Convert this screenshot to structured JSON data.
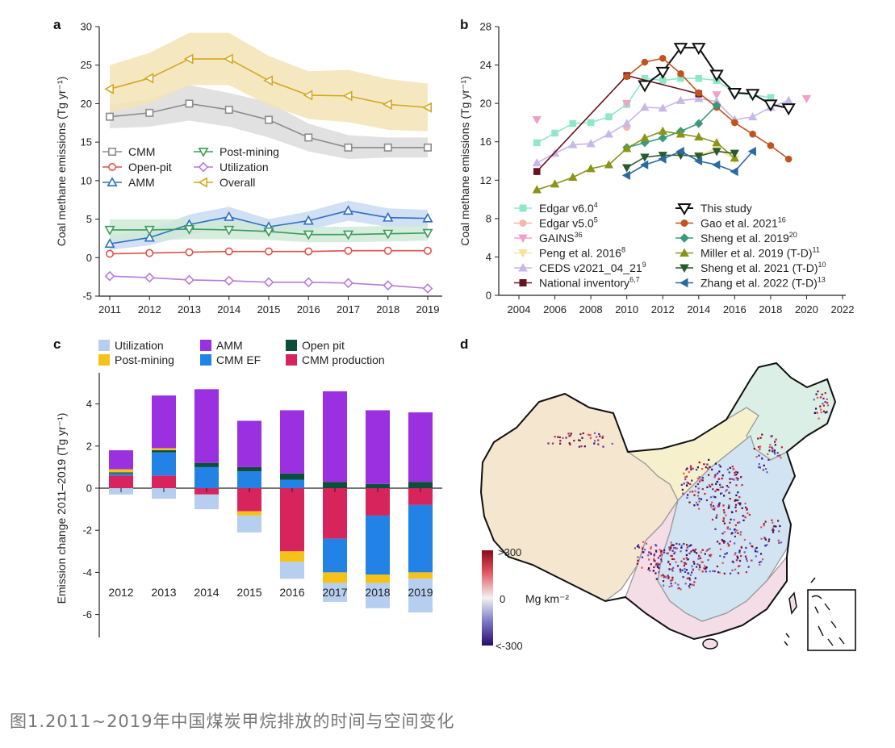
{
  "caption": "图1.2011~2019年中国煤炭甲烷排放的时间与空间变化",
  "chart_data": [
    {
      "panel": "a",
      "type": "line",
      "ylabel": "Coal methane emissions (Tg yr⁻¹)",
      "ylim": [
        -5,
        30
      ],
      "yticks": [
        -5,
        0,
        5,
        10,
        15,
        20,
        25,
        30
      ],
      "x": [
        2011,
        2012,
        2013,
        2014,
        2015,
        2016,
        2017,
        2018,
        2019
      ],
      "series": [
        {
          "name": "CMM",
          "color": "#8c8c8c",
          "band": "#dcdcdc",
          "marker": "square",
          "values": [
            18.3,
            18.8,
            20.0,
            19.2,
            17.9,
            15.6,
            14.3,
            14.3,
            14.3
          ],
          "lo": [
            16.8,
            17.0,
            17.8,
            17.0,
            15.6,
            13.8,
            12.8,
            13.0,
            13.0
          ],
          "hi": [
            19.8,
            20.6,
            22.4,
            21.4,
            20.2,
            17.4,
            15.9,
            15.6,
            15.6
          ]
        },
        {
          "name": "Open-pit",
          "color": "#e0504a",
          "marker": "circle",
          "values": [
            0.5,
            0.6,
            0.7,
            0.8,
            0.8,
            0.8,
            0.9,
            0.9,
            0.9
          ]
        },
        {
          "name": "AMM",
          "color": "#2d6ec4",
          "band": "#c9daf2",
          "marker": "triangle-up",
          "values": [
            1.8,
            2.6,
            4.3,
            5.3,
            4.0,
            4.8,
            6.1,
            5.2,
            5.1
          ],
          "lo": [
            1.0,
            1.6,
            3.0,
            4.0,
            3.0,
            3.6,
            4.8,
            4.0,
            4.0
          ],
          "hi": [
            2.8,
            3.6,
            5.6,
            6.6,
            5.0,
            6.0,
            7.4,
            6.4,
            6.2
          ]
        },
        {
          "name": "Post-mining",
          "color": "#3a9c5a",
          "band": "#cfe9d6",
          "marker": "triangle-down",
          "values": [
            3.6,
            3.6,
            3.7,
            3.6,
            3.4,
            3.0,
            3.0,
            3.1,
            3.2
          ],
          "lo": [
            2.2,
            2.2,
            2.4,
            2.4,
            2.3,
            2.0,
            2.0,
            2.1,
            2.2
          ],
          "hi": [
            5.0,
            5.0,
            5.0,
            4.8,
            4.5,
            4.0,
            4.0,
            4.1,
            4.2
          ]
        },
        {
          "name": "Utilization",
          "color": "#b67ad8",
          "marker": "diamond",
          "values": [
            -2.4,
            -2.6,
            -2.9,
            -3.0,
            -3.2,
            -3.2,
            -3.3,
            -3.6,
            -4.0
          ]
        },
        {
          "name": "Overall",
          "color": "#d4a820",
          "band": "#f3e4b6",
          "marker": "triangle-left",
          "values": [
            21.9,
            23.3,
            25.8,
            25.8,
            23.0,
            21.1,
            21.0,
            19.9,
            19.5
          ],
          "lo": [
            18.8,
            20.0,
            22.4,
            22.4,
            19.8,
            18.0,
            17.6,
            16.6,
            16.4
          ],
          "hi": [
            25.0,
            26.6,
            29.2,
            29.2,
            26.2,
            24.2,
            24.4,
            23.2,
            22.6
          ]
        }
      ]
    },
    {
      "panel": "b",
      "type": "line",
      "ylabel": "Coal methane emissions (Tg yr⁻¹)",
      "xlim": [
        2002,
        2022
      ],
      "xticks": [
        2004,
        2006,
        2008,
        2010,
        2012,
        2014,
        2016,
        2018,
        2020,
        2022
      ],
      "ylim": [
        0,
        28
      ],
      "yticks": [
        0,
        4,
        8,
        12,
        16,
        20,
        24,
        28
      ],
      "series": [
        {
          "name": "Edgar v6.0",
          "sup": "4",
          "color": "#8fe8c8",
          "marker": "square",
          "x": [
            2005,
            2006,
            2007,
            2008,
            2009,
            2010,
            2011,
            2012,
            2013,
            2014,
            2015,
            2016,
            2017,
            2018
          ],
          "values": [
            15.9,
            16.9,
            17.9,
            18.0,
            18.6,
            19.9,
            22.6,
            22.4,
            22.6,
            22.6,
            22.4,
            21.1,
            20.9,
            20.6
          ]
        },
        {
          "name": "Edgar v5.0",
          "sup": "5",
          "color": "#f4b8a8",
          "marker": "circle",
          "x": [
            2010
          ],
          "values": [
            17.5
          ]
        },
        {
          "name": "GAINS",
          "sup": "36",
          "color": "#f2a0c8",
          "marker": "triangle-down",
          "x": [
            2005,
            2010,
            2015,
            2020
          ],
          "values": [
            18.3,
            20.0,
            20.9,
            20.5
          ]
        },
        {
          "name": "Peng et al. 2016",
          "sup": "8",
          "color": "#f6e49a",
          "marker": "triangle-down",
          "x": [
            2014,
            2015,
            2016
          ],
          "values": [
            14.6,
            15.3,
            14.2
          ]
        },
        {
          "name": "CEDS v2021_04_21",
          "sup": "9",
          "color": "#c8b8e8",
          "marker": "triangle-up",
          "x": [
            2005,
            2006,
            2007,
            2008,
            2009,
            2010,
            2011,
            2012,
            2013,
            2014,
            2015,
            2016,
            2017,
            2018,
            2019
          ],
          "values": [
            13.8,
            14.8,
            15.7,
            15.8,
            16.8,
            17.9,
            19.6,
            19.5,
            20.3,
            20.5,
            20.2,
            18.3,
            18.6,
            19.6,
            20.3
          ]
        },
        {
          "name": "National inventory",
          "sup": "6,7",
          "color": "#6b1020",
          "marker": "square",
          "x": [
            2005,
            2010,
            2014
          ],
          "values": [
            12.9,
            22.9,
            21.0
          ]
        },
        {
          "name": "This study",
          "color": "#111111",
          "marker": "triangle-down-open",
          "x": [
            2011,
            2012,
            2013,
            2014,
            2015,
            2016,
            2017,
            2018,
            2019
          ],
          "values": [
            21.9,
            23.3,
            25.8,
            25.8,
            23.0,
            21.1,
            21.0,
            19.9,
            19.5
          ]
        },
        {
          "name": "Gao et al. 2021",
          "sup": "16",
          "color": "#c0541c",
          "marker": "circle",
          "x": [
            2010,
            2011,
            2012,
            2013,
            2014,
            2015,
            2016,
            2017,
            2018,
            2019
          ],
          "values": [
            22.8,
            24.3,
            24.7,
            23.1,
            21.1,
            19.6,
            18.0,
            16.8,
            15.6,
            14.2
          ]
        },
        {
          "name": "Sheng et al. 2019",
          "sup": "20",
          "color": "#3a9a78",
          "marker": "diamond",
          "x": [
            2010,
            2011,
            2012,
            2013,
            2014,
            2015
          ],
          "values": [
            15.4,
            15.9,
            16.4,
            17.1,
            17.9,
            19.8
          ]
        },
        {
          "name": "Miller et al. 2019 (T-D)",
          "sup": "11",
          "color": "#8a9418",
          "marker": "triangle-up",
          "x": [
            2005,
            2006,
            2007,
            2008,
            2009,
            2010,
            2011,
            2012,
            2013,
            2014,
            2015,
            2016
          ],
          "values": [
            11.0,
            11.6,
            12.3,
            13.2,
            13.6,
            15.3,
            16.4,
            17.1,
            16.8,
            16.5,
            15.9,
            14.3
          ]
        },
        {
          "name": "Sheng et al. 2021 (T-D)",
          "sup": "10",
          "color": "#2a5a2a",
          "marker": "triangle-down",
          "x": [
            2010,
            2011,
            2012,
            2013,
            2014,
            2015,
            2016
          ],
          "values": [
            13.3,
            14.4,
            14.6,
            14.6,
            14.5,
            15.0,
            14.8
          ]
        },
        {
          "name": "Zhang et al. 2022 (T-D)",
          "sup": "13",
          "color": "#2a6aa0",
          "marker": "triangle-left",
          "x": [
            2010,
            2011,
            2012,
            2013,
            2014,
            2015,
            2016,
            2017
          ],
          "values": [
            12.5,
            13.6,
            14.2,
            15.0,
            14.0,
            13.6,
            12.9,
            15.0
          ]
        }
      ]
    },
    {
      "panel": "c",
      "type": "bar",
      "ylabel": "Emission change 2011–2019 (Tg yr⁻¹)",
      "ylim": [
        -7,
        5.5
      ],
      "yticks": [
        -6,
        -4,
        -2,
        0,
        2,
        4
      ],
      "categories": [
        "2012",
        "2013",
        "2014",
        "2015",
        "2016",
        "2017",
        "2018",
        "2019"
      ],
      "series": [
        {
          "name": "Utilization",
          "color": "#b6cff0",
          "values": [
            -0.3,
            -0.5,
            -0.7,
            -0.8,
            -0.8,
            -0.9,
            -1.2,
            -1.6
          ]
        },
        {
          "name": "Post-mining",
          "color": "#f6c21a",
          "values": [
            0.15,
            0.1,
            0.0,
            -0.2,
            -0.5,
            -0.5,
            -0.4,
            -0.3
          ]
        },
        {
          "name": "AMM",
          "color": "#9b30e0",
          "values": [
            0.9,
            2.5,
            3.5,
            2.2,
            3.0,
            4.3,
            3.5,
            3.3
          ]
        },
        {
          "name": "CMM EF",
          "color": "#2282e6",
          "values": [
            0.1,
            1.1,
            1.0,
            0.8,
            0.4,
            -1.6,
            -2.8,
            -3.2
          ]
        },
        {
          "name": "Open pit",
          "color": "#0c4e3c",
          "values": [
            0.05,
            0.1,
            0.2,
            0.2,
            0.3,
            0.3,
            0.2,
            0.3
          ]
        },
        {
          "name": "CMM production",
          "color": "#d8245c",
          "values": [
            0.6,
            0.6,
            -0.3,
            -1.1,
            -3.0,
            -2.4,
            -1.3,
            -0.8
          ]
        }
      ]
    }
  ],
  "map": {
    "panel": "d",
    "colorbar_max": ">300",
    "colorbar_mid": "0",
    "colorbar_min": "<-300",
    "unit": "Mg km⁻²"
  },
  "panel_letters": [
    "a",
    "b",
    "c",
    "d"
  ]
}
